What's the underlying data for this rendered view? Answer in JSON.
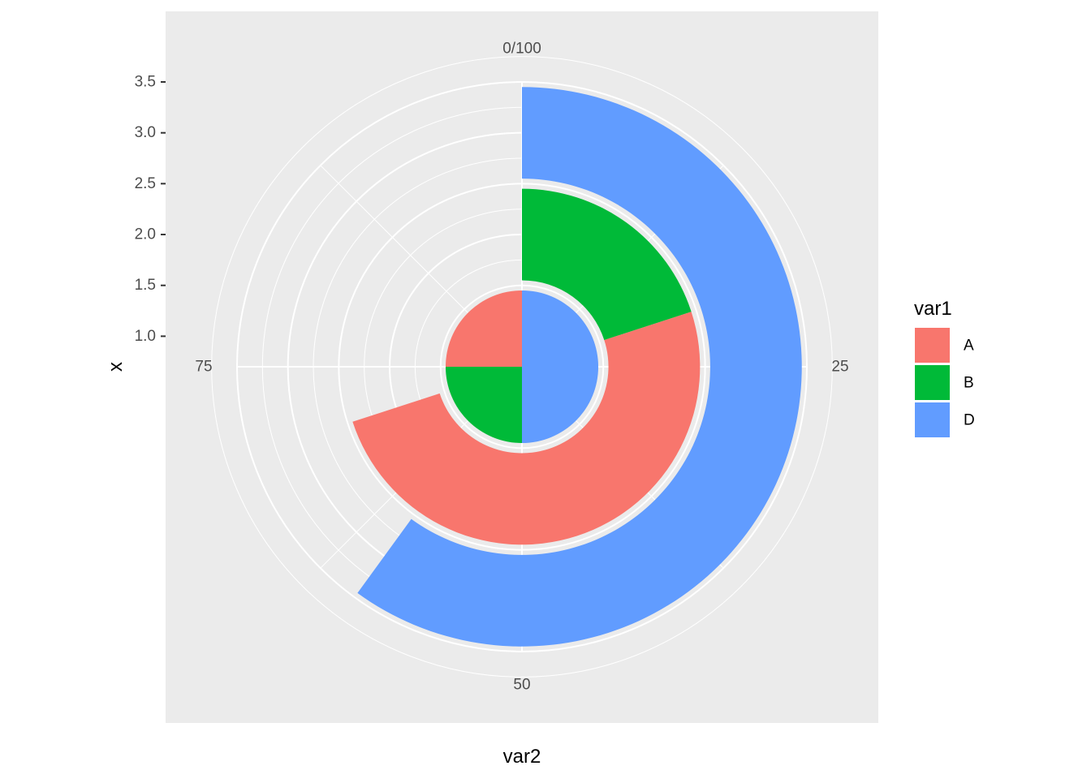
{
  "chart_data": {
    "type": "pie",
    "coord": "polar",
    "xlabel": "var2",
    "ylabel": "x",
    "radial_axis": {
      "range": [
        0.7,
        3.5
      ],
      "ticks": [
        1.0,
        1.5,
        2.0,
        2.5,
        3.0,
        3.5
      ],
      "tick_labels": [
        "1.0",
        "1.5",
        "2.0",
        "2.5",
        "3.0",
        "3.5"
      ]
    },
    "angular_axis": {
      "range": [
        0,
        100
      ],
      "ticks": [
        0,
        25,
        50,
        75
      ],
      "tick_labels": [
        "0/100",
        "25",
        "50",
        "75"
      ],
      "minor_breaks": [
        12.5,
        37.5,
        62.5,
        87.5
      ]
    },
    "legend": {
      "title": "var1",
      "position": "right",
      "entries": [
        {
          "label": "A",
          "color": "#F8766D"
        },
        {
          "label": "B",
          "color": "#00BA38"
        },
        {
          "label": "D",
          "color": "#619CFF"
        }
      ]
    },
    "bars": [
      {
        "x": 1,
        "var1": "D",
        "start": 0,
        "end": 50,
        "color": "#619CFF"
      },
      {
        "x": 1,
        "var1": "B",
        "start": 50,
        "end": 75,
        "color": "#00BA38"
      },
      {
        "x": 1,
        "var1": "A",
        "start": 75,
        "end": 100,
        "color": "#F8766D"
      },
      {
        "x": 2,
        "var1": "B",
        "start": 0,
        "end": 20,
        "color": "#00BA38"
      },
      {
        "x": 2,
        "var1": "A",
        "start": 20,
        "end": 70,
        "color": "#F8766D"
      },
      {
        "x": 3,
        "var1": "D",
        "start": 0,
        "end": 60,
        "color": "#619CFF"
      }
    ],
    "bar_width": 0.9,
    "grid": true,
    "panel_background": "#EBEBEB",
    "grid_color": "#FFFFFF"
  }
}
